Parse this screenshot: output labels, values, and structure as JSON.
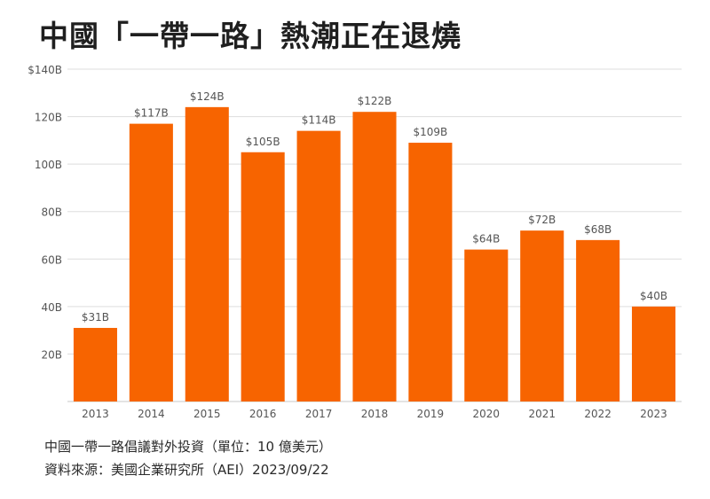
{
  "title": "中國「一帶一路」熱潮正在退燒",
  "notes": {
    "line1": "中國一帶一路倡議對外投資（單位：10 億美元）",
    "line2": "資料來源：美國企業研究所（AEI）2023/09/22"
  },
  "colors": {
    "bar": "#f76400",
    "grid": "#dddddd",
    "axis_text": "#555555",
    "label_text": "#555555"
  },
  "chart_data": {
    "type": "bar",
    "title": "中國「一帶一路」熱潮正在退燒",
    "xlabel": "",
    "ylabel": "",
    "grid": true,
    "ylim": [
      0,
      140
    ],
    "yticks": [
      20,
      40,
      60,
      80,
      100,
      120,
      140
    ],
    "ytick_labels": [
      "20B",
      "40B",
      "60B",
      "80B",
      "100B",
      "120B",
      "$140B"
    ],
    "categories": [
      "2013",
      "2014",
      "2015",
      "2016",
      "2017",
      "2018",
      "2019",
      "2020",
      "2021",
      "2022",
      "2023"
    ],
    "values": [
      31,
      117,
      124,
      105,
      114,
      122,
      109,
      64,
      72,
      68,
      40
    ],
    "data_labels": [
      "$31B",
      "$117B",
      "$124B",
      "$105B",
      "$114B",
      "$122B",
      "$109B",
      "$64B",
      "$72B",
      "$68B",
      "$40B"
    ]
  }
}
